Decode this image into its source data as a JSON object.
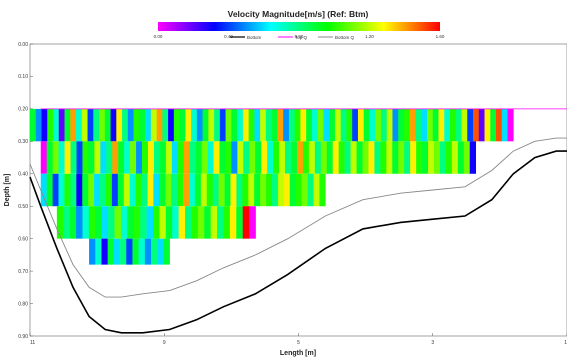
{
  "chart_data": {
    "type": "heatmap",
    "title": "Velocity Magnitude[m/s] (Ref: Btm)",
    "xlabel": "Length [m]",
    "ylabel": "Depth [m]",
    "x_ticks": [
      "11",
      "9",
      "5",
      "3",
      "1"
    ],
    "y_ticks": [
      "0.00",
      "0.10",
      "0.20",
      "0.30",
      "0.40",
      "0.50",
      "0.60",
      "0.70",
      "0.80",
      "0.90"
    ],
    "ylim": [
      0.0,
      0.9
    ],
    "colorbar": {
      "min": 0.0,
      "max": 1.6,
      "tick_labels": [
        "0.00",
        "0.40",
        "0.80",
        "1.20",
        "1.60"
      ],
      "colors": [
        "#ff00ff",
        "#8000ff",
        "#0000ff",
        "#0080ff",
        "#00ffff",
        "#00ff80",
        "#00ff00",
        "#80ff00",
        "#ffff00",
        "#ff8000",
        "#ff0000"
      ]
    },
    "legend": {
      "placement": "top-center",
      "entries": [
        {
          "name": "Bottom",
          "color": "#000000",
          "style": "solid"
        },
        {
          "name": "Top Q",
          "color": "#ff00ff",
          "style": "solid"
        },
        {
          "name": "Bottom Q",
          "color": "#888888",
          "style": "solid"
        }
      ]
    },
    "bottom_profile": [
      [
        0.0,
        0.41
      ],
      [
        0.02,
        0.5
      ],
      [
        0.05,
        0.63
      ],
      [
        0.08,
        0.75
      ],
      [
        0.11,
        0.84
      ],
      [
        0.14,
        0.88
      ],
      [
        0.17,
        0.89
      ],
      [
        0.21,
        0.89
      ],
      [
        0.26,
        0.88
      ],
      [
        0.31,
        0.85
      ],
      [
        0.36,
        0.81
      ],
      [
        0.42,
        0.77
      ],
      [
        0.48,
        0.71
      ],
      [
        0.55,
        0.63
      ],
      [
        0.62,
        0.57
      ],
      [
        0.69,
        0.55
      ],
      [
        0.75,
        0.54
      ],
      [
        0.81,
        0.53
      ],
      [
        0.86,
        0.48
      ],
      [
        0.9,
        0.4
      ],
      [
        0.94,
        0.35
      ],
      [
        0.98,
        0.33
      ],
      [
        1.0,
        0.33
      ]
    ],
    "bottom_q_profile": [
      [
        0.0,
        0.37
      ],
      [
        0.02,
        0.45
      ],
      [
        0.05,
        0.57
      ],
      [
        0.08,
        0.68
      ],
      [
        0.11,
        0.75
      ],
      [
        0.14,
        0.78
      ],
      [
        0.17,
        0.78
      ],
      [
        0.21,
        0.77
      ],
      [
        0.26,
        0.76
      ],
      [
        0.31,
        0.73
      ],
      [
        0.36,
        0.69
      ],
      [
        0.42,
        0.65
      ],
      [
        0.48,
        0.6
      ],
      [
        0.55,
        0.53
      ],
      [
        0.62,
        0.48
      ],
      [
        0.69,
        0.46
      ],
      [
        0.75,
        0.45
      ],
      [
        0.81,
        0.44
      ],
      [
        0.86,
        0.39
      ],
      [
        0.9,
        0.33
      ],
      [
        0.94,
        0.3
      ],
      [
        0.98,
        0.29
      ],
      [
        1.0,
        0.29
      ]
    ],
    "top_q_depth": 0.2,
    "rows": [
      {
        "top": 0.2,
        "bottom": 0.3,
        "x_start": 0.0,
        "x_end": 0.9,
        "values": [
          0.9,
          0.5,
          0.3,
          1.0,
          0.7,
          0.2,
          0.9,
          1.4,
          0.7,
          1.2,
          0.4,
          0.8,
          1.1,
          0.9,
          0.3,
          1.3,
          0.8,
          0.5,
          1.0,
          0.9,
          0.6,
          1.2,
          1.4,
          0.8,
          0.3,
          1.0,
          0.9,
          1.3,
          0.7,
          0.5,
          0.9,
          1.2,
          0.8,
          0.4,
          1.1,
          0.9,
          0.7,
          1.3,
          1.0,
          0.6,
          1.2,
          0.8,
          0.9,
          1.4,
          0.5,
          0.8,
          1.0,
          1.3,
          0.9,
          0.7,
          1.1,
          0.6,
          0.9,
          1.2,
          0.8,
          1.0,
          0.4,
          1.3,
          0.9,
          0.7,
          1.1,
          0.8,
          1.2,
          0.5,
          0.9,
          1.0,
          1.4,
          0.8,
          0.6,
          1.1,
          0.9,
          1.3,
          0.7,
          1.0,
          0.8,
          1.2,
          0.4,
          1.5,
          0.2,
          1.3,
          0.9,
          1.5,
          0.6,
          0.0
        ]
      },
      {
        "top": 0.3,
        "bottom": 0.4,
        "x_start": 0.02,
        "x_end": 0.83,
        "values": [
          0.0,
          0.9,
          1.1,
          0.7,
          1.3,
          0.8,
          0.4,
          1.0,
          0.9,
          1.2,
          0.6,
          0.8,
          1.4,
          0.9,
          0.7,
          1.1,
          0.5,
          1.0,
          1.3,
          0.8,
          0.9,
          1.2,
          0.6,
          1.0,
          1.4,
          0.8,
          0.9,
          1.1,
          0.7,
          1.3,
          0.9,
          1.0,
          0.5,
          1.2,
          0.8,
          1.1,
          0.9,
          1.3,
          0.7,
          1.0,
          1.2,
          0.8,
          0.9,
          1.4,
          1.0,
          1.2,
          0.8,
          1.1,
          0.9,
          1.3,
          1.0,
          0.8,
          1.2,
          0.9,
          1.1,
          1.3,
          0.8,
          1.0,
          1.2,
          0.9,
          1.1,
          0.8,
          1.3,
          1.0,
          0.9,
          1.2,
          1.1,
          0.8,
          1.0,
          1.2,
          0.9,
          1.1,
          0.3
        ]
      },
      {
        "top": 0.4,
        "bottom": 0.5,
        "x_start": 0.02,
        "x_end": 0.55,
        "values": [
          0.6,
          0.9,
          0.4,
          0.7,
          1.0,
          0.8,
          0.3,
          0.9,
          1.1,
          0.6,
          0.8,
          1.0,
          0.4,
          0.9,
          1.2,
          0.7,
          1.0,
          0.8,
          1.3,
          0.6,
          0.9,
          1.1,
          0.8,
          1.0,
          1.4,
          0.7,
          0.9,
          1.2,
          1.0,
          0.8,
          1.1,
          0.9,
          1.3,
          0.8,
          1.0,
          1.2,
          0.9,
          1.1,
          1.0,
          0.8,
          1.2,
          1.3,
          0.9,
          1.0,
          1.1,
          0.8,
          1.2,
          1.0
        ]
      },
      {
        "top": 0.5,
        "bottom": 0.6,
        "x_start": 0.05,
        "x_end": 0.42,
        "values": [
          1.0,
          0.8,
          0.9,
          0.5,
          0.7,
          1.0,
          0.9,
          0.6,
          0.8,
          1.1,
          0.7,
          0.9,
          1.0,
          0.8,
          0.6,
          1.0,
          1.2,
          0.9,
          0.7,
          1.3,
          0.8,
          1.0,
          1.1,
          0.9,
          1.2,
          0.8,
          1.0,
          1.3,
          0.9,
          1.6,
          0.0
        ]
      },
      {
        "top": 0.6,
        "bottom": 0.68,
        "x_start": 0.11,
        "x_end": 0.26,
        "values": [
          0.5,
          0.7,
          0.3,
          0.9,
          0.6,
          0.8,
          0.4,
          0.9,
          0.7,
          0.5,
          0.8,
          0.6,
          0.9
        ]
      }
    ]
  }
}
